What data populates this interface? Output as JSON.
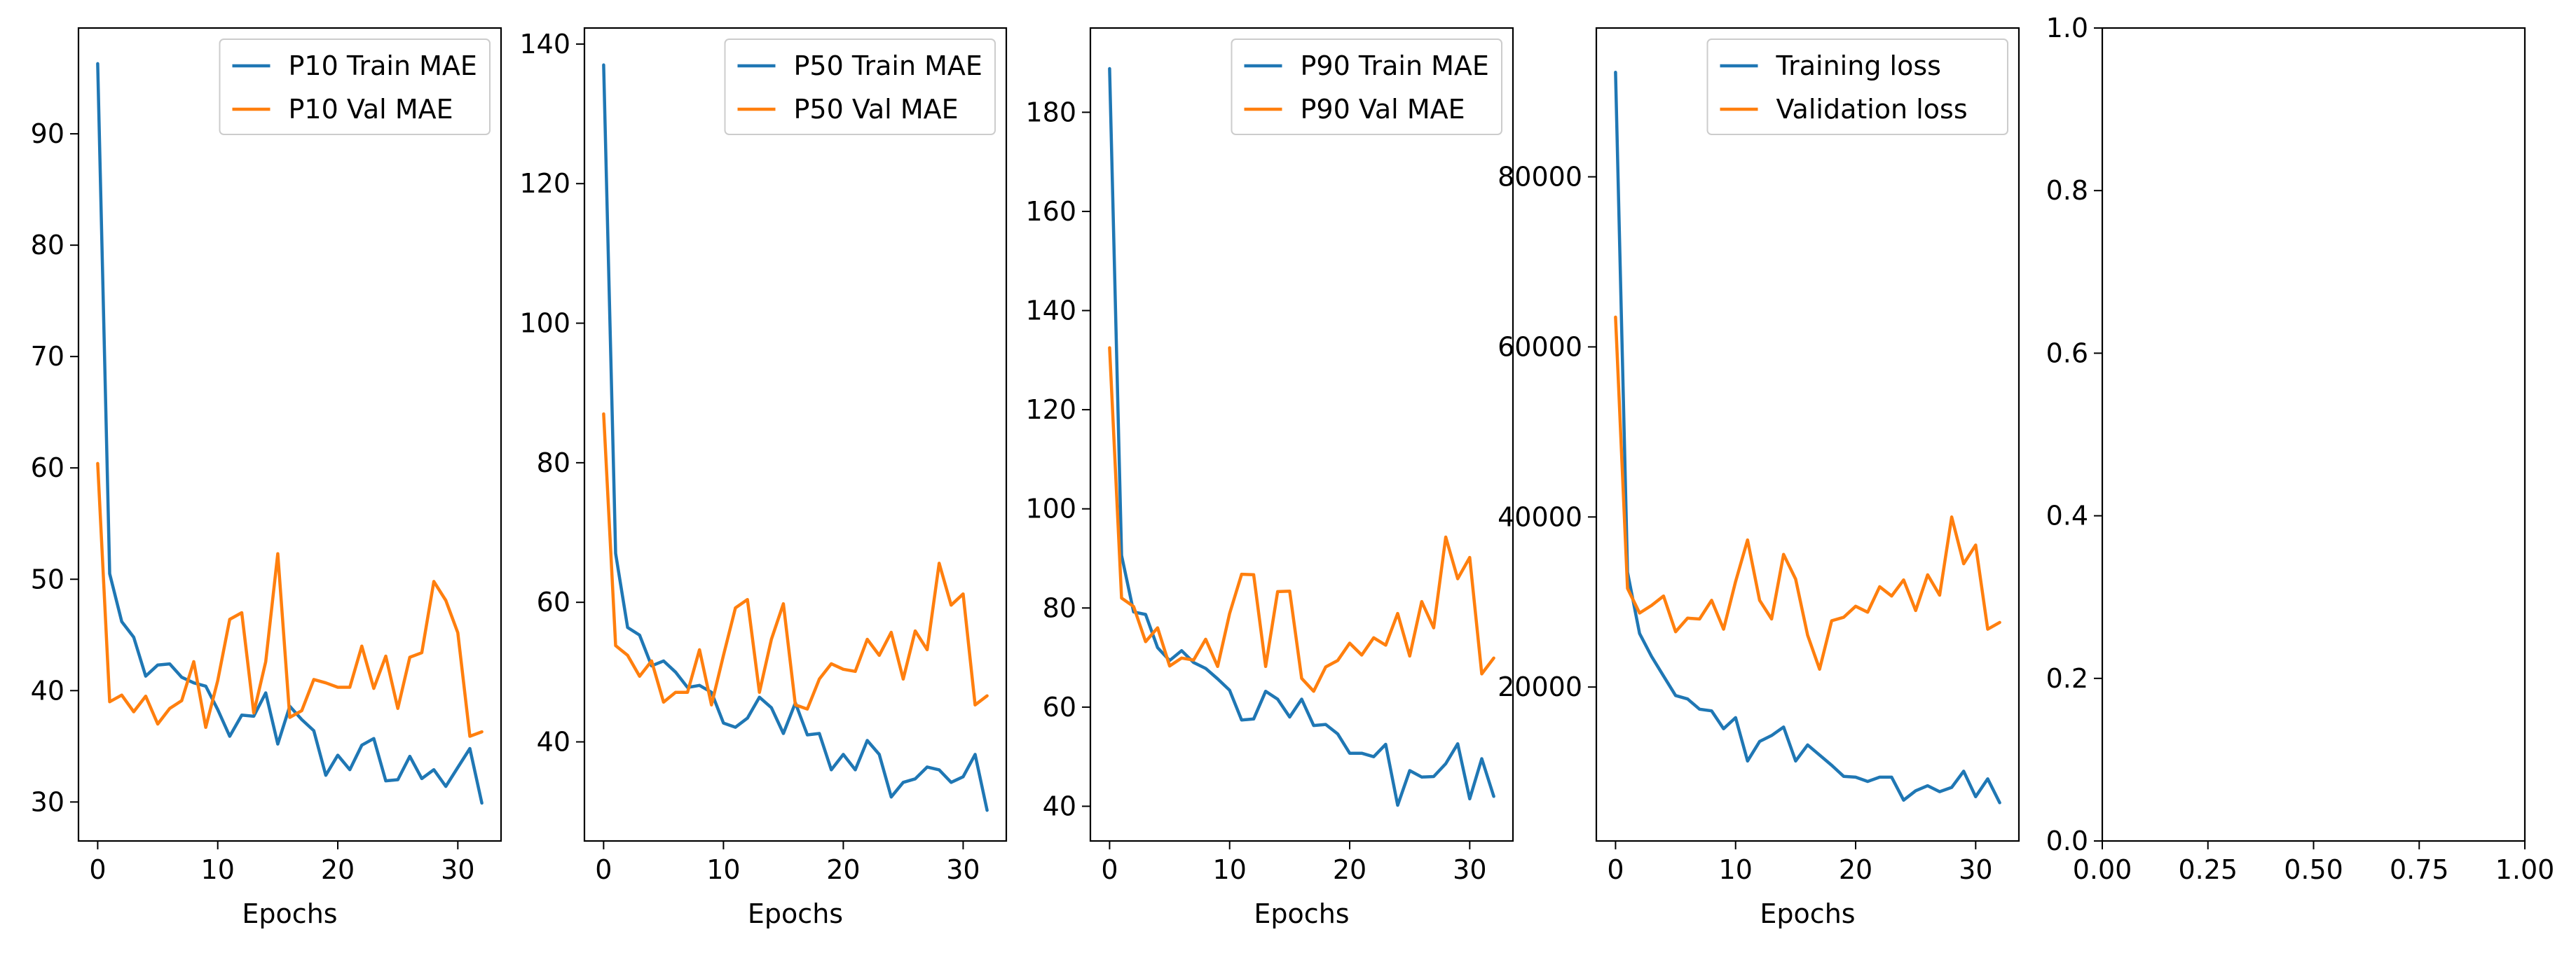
{
  "colors": {
    "series1": "#1f77b4",
    "series2": "#ff7f0e"
  },
  "chart_data": [
    {
      "type": "line",
      "xlabel": "Epochs",
      "xlim": [
        -1.6,
        33.6
      ],
      "ylim": [
        26.5,
        99.5
      ],
      "xticks": [
        0,
        10,
        20,
        30
      ],
      "yticks": [
        30,
        40,
        50,
        60,
        70,
        80,
        90
      ],
      "legend": "top-right",
      "x": [
        0,
        1,
        2,
        3,
        4,
        5,
        6,
        7,
        8,
        9,
        10,
        11,
        12,
        13,
        14,
        15,
        16,
        17,
        18,
        19,
        20,
        21,
        22,
        23,
        24,
        25,
        26,
        27,
        28,
        29,
        30,
        31,
        32
      ],
      "series": [
        {
          "name": "P10 Train MAE",
          "values": [
            96.3,
            50.5,
            46.2,
            44.8,
            41.3,
            42.3,
            42.4,
            41.2,
            40.7,
            40.4,
            38.3,
            35.9,
            37.8,
            37.7,
            39.8,
            35.2,
            38.6,
            37.4,
            36.4,
            32.4,
            34.2,
            32.9,
            35.1,
            35.7,
            31.9,
            32.0,
            34.1,
            32.1,
            32.9,
            31.4,
            33.1,
            34.8,
            29.9
          ]
        },
        {
          "name": "P10 Val MAE",
          "values": [
            60.4,
            39.0,
            39.6,
            38.1,
            39.5,
            37.0,
            38.4,
            39.1,
            42.6,
            36.7,
            40.9,
            46.4,
            47.0,
            38.0,
            42.6,
            52.3,
            37.6,
            38.2,
            41.0,
            40.7,
            40.3,
            40.3,
            44.0,
            40.2,
            43.1,
            38.4,
            43.0,
            43.4,
            49.8,
            48.1,
            45.2,
            35.9,
            36.3
          ]
        }
      ]
    },
    {
      "type": "line",
      "xlabel": "Epochs",
      "xlim": [
        -1.6,
        33.6
      ],
      "ylim": [
        25.8,
        142.3
      ],
      "xticks": [
        0,
        10,
        20,
        30
      ],
      "yticks": [
        40,
        60,
        80,
        100,
        120,
        140
      ],
      "legend": "top-right",
      "x": [
        0,
        1,
        2,
        3,
        4,
        5,
        6,
        7,
        8,
        9,
        10,
        11,
        12,
        13,
        14,
        15,
        16,
        17,
        18,
        19,
        20,
        21,
        22,
        23,
        24,
        25,
        26,
        27,
        28,
        29,
        30,
        31,
        32
      ],
      "series": [
        {
          "name": "P50 Train MAE",
          "values": [
            137.0,
            67.0,
            56.4,
            55.3,
            50.9,
            51.6,
            50.0,
            47.8,
            48.1,
            47.1,
            42.7,
            42.1,
            43.4,
            46.4,
            44.9,
            41.2,
            45.6,
            41.0,
            41.2,
            36.0,
            38.2,
            36.0,
            40.2,
            38.2,
            32.1,
            34.2,
            34.7,
            36.4,
            36.0,
            34.2,
            35.0,
            38.2,
            30.2
          ]
        },
        {
          "name": "P50 Val MAE",
          "values": [
            87.0,
            53.8,
            52.4,
            49.4,
            51.6,
            45.7,
            47.1,
            47.1,
            53.2,
            45.3,
            52.4,
            59.2,
            60.4,
            47.1,
            54.7,
            59.8,
            45.3,
            44.7,
            49.0,
            51.2,
            50.4,
            50.1,
            54.7,
            52.4,
            55.7,
            49.0,
            55.9,
            53.2,
            65.6,
            59.6,
            61.2,
            45.3,
            46.6
          ]
        }
      ]
    },
    {
      "type": "line",
      "xlabel": "Epochs",
      "xlim": [
        -1.6,
        33.6
      ],
      "ylim": [
        33.0,
        197.0
      ],
      "xticks": [
        0,
        10,
        20,
        30
      ],
      "yticks": [
        40,
        60,
        80,
        100,
        120,
        140,
        160,
        180
      ],
      "legend": "top-right",
      "x": [
        0,
        1,
        2,
        3,
        4,
        5,
        6,
        7,
        8,
        9,
        10,
        11,
        12,
        13,
        14,
        15,
        16,
        17,
        18,
        19,
        20,
        21,
        22,
        23,
        24,
        25,
        26,
        27,
        28,
        29,
        30,
        31,
        32
      ],
      "series": [
        {
          "name": "P90 Train MAE",
          "values": [
            188.8,
            90.6,
            79.2,
            78.7,
            72.0,
            69.4,
            71.4,
            69.0,
            67.8,
            65.7,
            63.4,
            57.4,
            57.6,
            63.2,
            61.6,
            58.0,
            61.6,
            56.3,
            56.5,
            54.6,
            50.7,
            50.7,
            50.0,
            52.5,
            40.2,
            47.2,
            45.9,
            46.0,
            48.6,
            52.6,
            41.5,
            49.6,
            42.0
          ]
        },
        {
          "name": "P90 Val MAE",
          "values": [
            132.5,
            82.0,
            80.3,
            73.2,
            76.0,
            68.3,
            69.9,
            69.5,
            73.7,
            68.2,
            78.9,
            86.8,
            86.7,
            68.2,
            83.3,
            83.4,
            65.8,
            63.2,
            68.1,
            69.4,
            72.9,
            70.5,
            74.0,
            72.5,
            78.9,
            70.3,
            81.3,
            76.0,
            94.3,
            85.9,
            90.2,
            66.7,
            69.9
          ]
        }
      ]
    },
    {
      "type": "line",
      "xlabel": "Epochs",
      "xlim": [
        -1.6,
        33.6
      ],
      "ylim": [
        1900,
        97500
      ],
      "xticks": [
        0,
        10,
        20,
        30
      ],
      "yticks": [
        20000,
        40000,
        60000,
        80000
      ],
      "legend": "top-right",
      "x": [
        0,
        1,
        2,
        3,
        4,
        5,
        6,
        7,
        8,
        9,
        10,
        11,
        12,
        13,
        14,
        15,
        16,
        17,
        18,
        19,
        20,
        21,
        22,
        23,
        24,
        25,
        26,
        27,
        28,
        29,
        30,
        31,
        32
      ],
      "series": [
        {
          "name": "Training loss",
          "values": [
            92300,
            33500,
            26300,
            23600,
            21300,
            19000,
            18600,
            17400,
            17200,
            15100,
            16400,
            11300,
            13600,
            14300,
            15300,
            11300,
            13200,
            12000,
            10800,
            9500,
            9400,
            8900,
            9400,
            9400,
            6700,
            7800,
            8400,
            7700,
            8200,
            10100,
            7100,
            9200,
            6400
          ]
        },
        {
          "name": "Validation loss",
          "values": [
            63500,
            31600,
            28700,
            29600,
            30700,
            26500,
            28100,
            28000,
            30200,
            26800,
            32400,
            37300,
            30200,
            28000,
            35600,
            32700,
            26100,
            22100,
            27800,
            28200,
            29500,
            28800,
            31800,
            30700,
            32600,
            29000,
            33200,
            30800,
            40000,
            34500,
            36700,
            26800,
            27600
          ]
        }
      ]
    },
    {
      "type": "line",
      "xlabel": "",
      "xlim": [
        0,
        1
      ],
      "ylim": [
        0,
        1
      ],
      "xticks": [
        0.0,
        0.25,
        0.5,
        0.75,
        1.0
      ],
      "yticks": [
        0.0,
        0.2,
        0.4,
        0.6,
        0.8,
        1.0
      ],
      "xtick_labels": [
        "0.00",
        "0.25",
        "0.50",
        "0.75",
        "1.00"
      ],
      "ytick_labels": [
        "0.0",
        "0.2",
        "0.4",
        "0.6",
        "0.8",
        "1.0"
      ],
      "series": []
    }
  ]
}
